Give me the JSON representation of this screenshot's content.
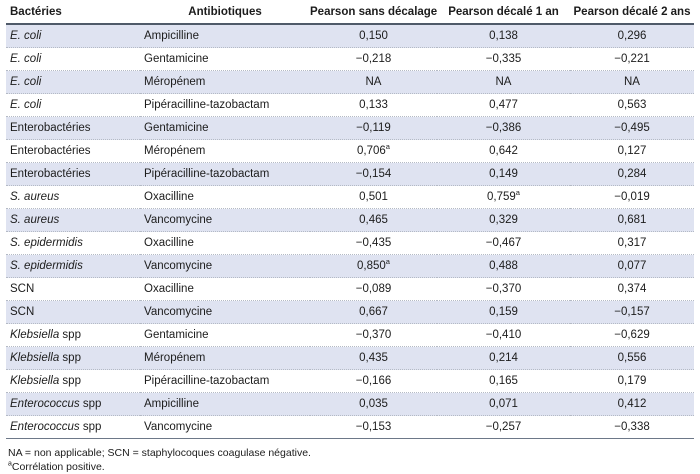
{
  "colors": {
    "row_stripe": "#dfe3f1",
    "header_rule": "#4f5a69",
    "bottom_rule": "#6d7888",
    "row_separator_dotted": "#b4bac5",
    "text": "#1c1c1c",
    "background": "#ffffff"
  },
  "table": {
    "columns": [
      "Bactéries",
      "Antibiotiques",
      "Pearson sans décalage",
      "Pearson décalé 1 an",
      "Pearson décalé 2 ans"
    ],
    "rows": [
      {
        "bacteria_italic": "E. coli",
        "bacteria_regular": "",
        "antibiotic": "Ampicilline",
        "values": [
          {
            "text": "0,150",
            "sup": ""
          },
          {
            "text": "0,138",
            "sup": ""
          },
          {
            "text": "0,296",
            "sup": ""
          }
        ]
      },
      {
        "bacteria_italic": "E. coli",
        "bacteria_regular": "",
        "antibiotic": "Gentamicine",
        "values": [
          {
            "text": "−0,218",
            "sup": ""
          },
          {
            "text": "−0,335",
            "sup": ""
          },
          {
            "text": "−0,221",
            "sup": ""
          }
        ]
      },
      {
        "bacteria_italic": "E. coli",
        "bacteria_regular": "",
        "antibiotic": "Méropénem",
        "values": [
          {
            "text": "NA",
            "sup": ""
          },
          {
            "text": "NA",
            "sup": ""
          },
          {
            "text": "NA",
            "sup": ""
          }
        ]
      },
      {
        "bacteria_italic": "E. coli",
        "bacteria_regular": "",
        "antibiotic": "Pipéracilline-tazobactam",
        "values": [
          {
            "text": "0,133",
            "sup": ""
          },
          {
            "text": "0,477",
            "sup": ""
          },
          {
            "text": "0,563",
            "sup": ""
          }
        ]
      },
      {
        "bacteria_italic": "",
        "bacteria_regular": "Enterobactéries",
        "antibiotic": "Gentamicine",
        "values": [
          {
            "text": "−0,119",
            "sup": ""
          },
          {
            "text": "−0,386",
            "sup": ""
          },
          {
            "text": "−0,495",
            "sup": ""
          }
        ]
      },
      {
        "bacteria_italic": "",
        "bacteria_regular": "Enterobactéries",
        "antibiotic": "Méropénem",
        "values": [
          {
            "text": "0,706",
            "sup": "a"
          },
          {
            "text": "0,642",
            "sup": ""
          },
          {
            "text": "0,127",
            "sup": ""
          }
        ]
      },
      {
        "bacteria_italic": "",
        "bacteria_regular": "Enterobactéries",
        "antibiotic": "Pipéracilline-tazobactam",
        "values": [
          {
            "text": "−0,154",
            "sup": ""
          },
          {
            "text": "0,149",
            "sup": ""
          },
          {
            "text": "0,284",
            "sup": ""
          }
        ]
      },
      {
        "bacteria_italic": "S. aureus",
        "bacteria_regular": "",
        "antibiotic": "Oxacilline",
        "values": [
          {
            "text": "0,501",
            "sup": ""
          },
          {
            "text": "0,759",
            "sup": "a"
          },
          {
            "text": "−0,019",
            "sup": ""
          }
        ]
      },
      {
        "bacteria_italic": "S. aureus",
        "bacteria_regular": "",
        "antibiotic": "Vancomycine",
        "values": [
          {
            "text": "0,465",
            "sup": ""
          },
          {
            "text": "0,329",
            "sup": ""
          },
          {
            "text": "0,681",
            "sup": ""
          }
        ]
      },
      {
        "bacteria_italic": "S. epidermidis",
        "bacteria_regular": "",
        "antibiotic": "Oxacilline",
        "values": [
          {
            "text": "−0,435",
            "sup": ""
          },
          {
            "text": "−0,467",
            "sup": ""
          },
          {
            "text": "0,317",
            "sup": ""
          }
        ]
      },
      {
        "bacteria_italic": "S. epidermidis",
        "bacteria_regular": "",
        "antibiotic": "Vancomycine",
        "values": [
          {
            "text": "0,850",
            "sup": "a"
          },
          {
            "text": "0,488",
            "sup": ""
          },
          {
            "text": "0,077",
            "sup": ""
          }
        ]
      },
      {
        "bacteria_italic": "",
        "bacteria_regular": "SCN",
        "antibiotic": "Oxacilline",
        "values": [
          {
            "text": "−0,089",
            "sup": ""
          },
          {
            "text": "−0,370",
            "sup": ""
          },
          {
            "text": "0,374",
            "sup": ""
          }
        ]
      },
      {
        "bacteria_italic": "",
        "bacteria_regular": "SCN",
        "antibiotic": "Vancomycine",
        "values": [
          {
            "text": "0,667",
            "sup": ""
          },
          {
            "text": "0,159",
            "sup": ""
          },
          {
            "text": "−0,157",
            "sup": ""
          }
        ]
      },
      {
        "bacteria_italic": "Klebsiella",
        "bacteria_regular": " spp",
        "antibiotic": "Gentamicine",
        "values": [
          {
            "text": "−0,370",
            "sup": ""
          },
          {
            "text": "−0,410",
            "sup": ""
          },
          {
            "text": "−0,629",
            "sup": ""
          }
        ]
      },
      {
        "bacteria_italic": "Klebsiella",
        "bacteria_regular": " spp",
        "antibiotic": "Méropénem",
        "values": [
          {
            "text": "0,435",
            "sup": ""
          },
          {
            "text": "0,214",
            "sup": ""
          },
          {
            "text": "0,556",
            "sup": ""
          }
        ]
      },
      {
        "bacteria_italic": "Klebsiella",
        "bacteria_regular": " spp",
        "antibiotic": "Pipéracilline-tazobactam",
        "values": [
          {
            "text": "−0,166",
            "sup": ""
          },
          {
            "text": "0,165",
            "sup": ""
          },
          {
            "text": "0,179",
            "sup": ""
          }
        ]
      },
      {
        "bacteria_italic": "Enterococcus",
        "bacteria_regular": " spp",
        "antibiotic": "Ampicilline",
        "values": [
          {
            "text": "0,035",
            "sup": ""
          },
          {
            "text": "0,071",
            "sup": ""
          },
          {
            "text": "0,412",
            "sup": ""
          }
        ]
      },
      {
        "bacteria_italic": "Enterococcus",
        "bacteria_regular": " spp",
        "antibiotic": "Vancomycine",
        "values": [
          {
            "text": "−0,153",
            "sup": ""
          },
          {
            "text": "−0,257",
            "sup": ""
          },
          {
            "text": "−0,338",
            "sup": ""
          }
        ]
      }
    ]
  },
  "footnotes": {
    "abbreviations": "NA = non applicable; SCN = staphylocoques coagulase négative.",
    "correlation_sup": "a",
    "correlation_text": "Corrélation positive."
  }
}
